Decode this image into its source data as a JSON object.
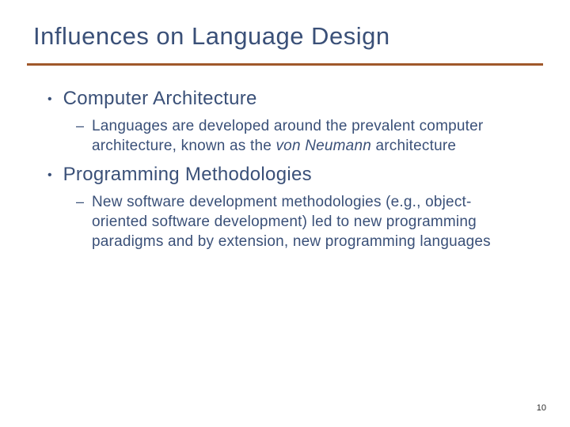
{
  "title": "Influences on Language Design",
  "divider_color": "#a0582a",
  "text_color": "#3a5078",
  "background_color": "#ffffff",
  "title_fontsize": 31,
  "bullet_fontsize": 24,
  "sub_fontsize": 19,
  "bullets": {
    "b1": {
      "heading": "Computer Architecture",
      "sub_prefix": "Languages are developed around the prevalent computer architecture, known as the ",
      "sub_italic": "von Neumann",
      "sub_suffix": " architecture"
    },
    "b2": {
      "heading": "Programming Methodologies",
      "sub": "New software development methodologies (e.g., object-oriented software development) led to new programming paradigms and by extension, new programming languages"
    }
  },
  "page_number": "10"
}
